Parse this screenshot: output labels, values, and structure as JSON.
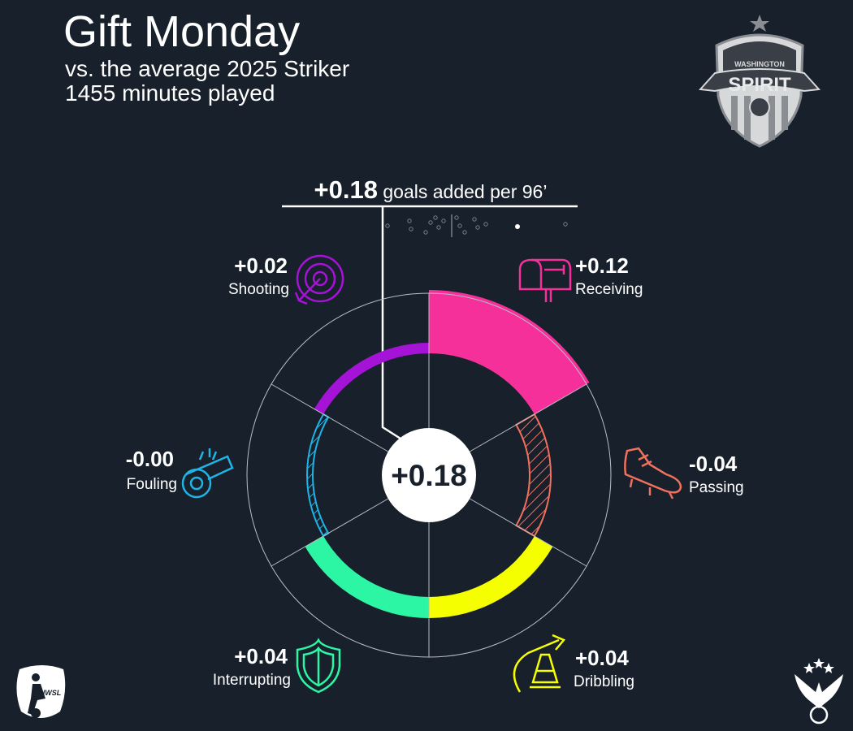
{
  "title": "Gift Monday",
  "subtitle_line1": "vs. the average 2025 Striker",
  "subtitle_line2": "1455 minutes played",
  "headline": {
    "value": "+0.18",
    "text": "goals added per 96’"
  },
  "center_value": "+0.18",
  "colors": {
    "background": "#17202b",
    "receiving": "#f5309a",
    "passing": "#f2705e",
    "dribbling": "#f5ff00",
    "interrupting": "#2cf5a4",
    "fouling": "#1fb4e5",
    "shooting": "#a513d6"
  },
  "chart_data": {
    "type": "radial-bar",
    "series": [
      {
        "name": "Receiving",
        "value": 0.12,
        "label": "+0.12",
        "icon": "mailbox-icon"
      },
      {
        "name": "Passing",
        "value": -0.04,
        "label": "-0.04",
        "icon": "cleat-icon"
      },
      {
        "name": "Dribbling",
        "value": 0.04,
        "label": "+0.04",
        "icon": "cone-icon"
      },
      {
        "name": "Interrupting",
        "value": 0.04,
        "label": "+0.04",
        "icon": "shield-icon"
      },
      {
        "name": "Fouling",
        "value": -0.004,
        "label": "-0.00",
        "icon": "whistle-icon"
      },
      {
        "name": "Shooting",
        "value": 0.02,
        "label": "+0.02",
        "icon": "target-icon"
      }
    ],
    "total": 0.18,
    "distribution_highlight": 0.18
  },
  "logos": {
    "club": {
      "name": "washington-spirit-crest",
      "text_top": "WASHINGTON",
      "text_main": "SPIRIT"
    },
    "league": {
      "name": "nwsl-logo",
      "text": "NWSL"
    }
  }
}
